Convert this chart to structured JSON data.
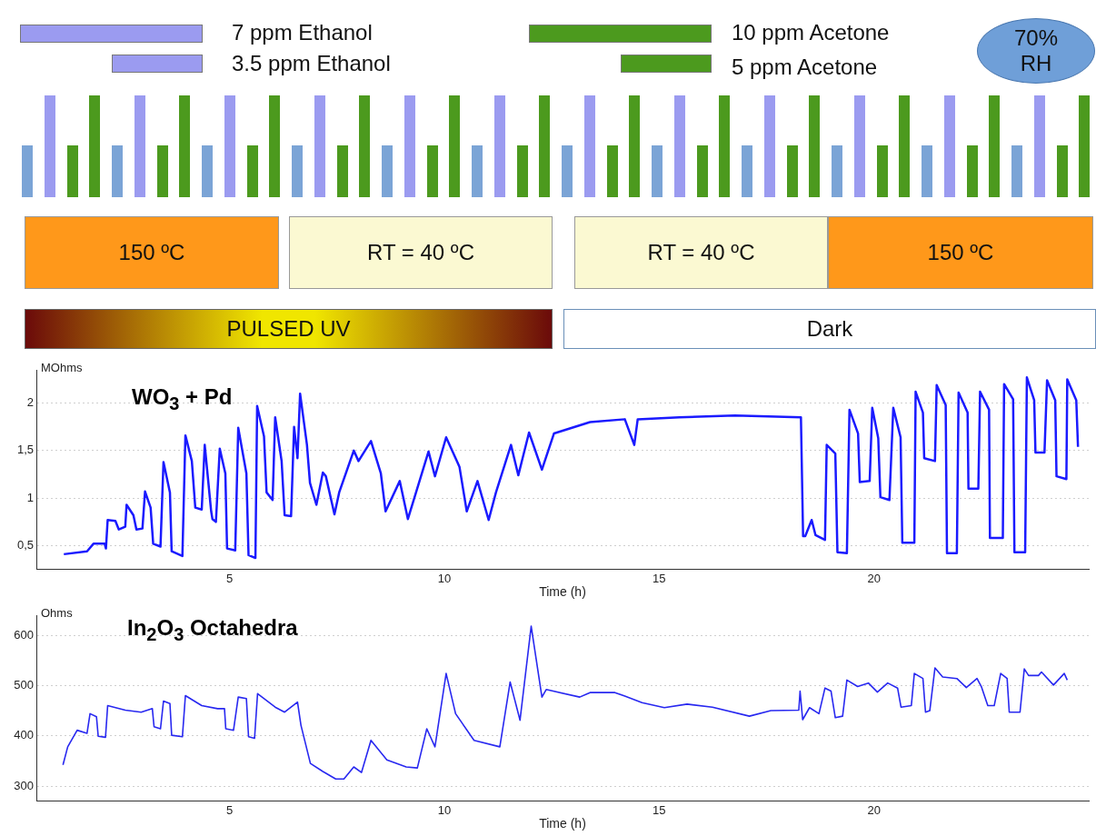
{
  "chart_data": [
    {
      "type": "other",
      "annotations": [
        "7 ppm Ethanol",
        "3.5 ppm Ethanol",
        "10 ppm Acetone",
        "5 ppm Acetone",
        "70% RH",
        "150 ºC",
        "RT = 40 ºC",
        "RT = 40 ºC",
        "150 ºC",
        "PULSED UV",
        "Dark"
      ]
    },
    {
      "type": "line",
      "title": "WO$_{3}$ + Pd",
      "xlabel": "Time (h)",
      "ylabel": "MOhms",
      "xlim": [
        0.5,
        25
      ],
      "xticks": [
        5,
        10,
        15,
        20
      ],
      "ylim": [
        0.25,
        2.35
      ],
      "yticks": [
        {
          "value": 0.5,
          "label": "0,5"
        },
        1,
        {
          "value": 1.5,
          "label": "1,5"
        },
        2
      ],
      "grid": "y",
      "marker": "none",
      "series": [
        {
          "color": "#1a1aff",
          "x": [
            1.14,
            1.68,
            1.83,
            2.09,
            2.12,
            2.16,
            2.34,
            2.42,
            2.57,
            2.6,
            2.76,
            2.83,
            2.97,
            3.03,
            3.16,
            3.22,
            3.39,
            3.46,
            3.61,
            3.65,
            3.9,
            3.97,
            4.12,
            4.2,
            4.35,
            4.42,
            4.57,
            4.6,
            4.68,
            4.77,
            4.9,
            4.94,
            5.13,
            5.2,
            5.39,
            5.44,
            5.6,
            5.64,
            5.8,
            5.86,
            6.0,
            6.06,
            6.21,
            6.28,
            6.43,
            6.5,
            6.58,
            6.64,
            6.8,
            6.87,
            7.02,
            7.17,
            7.24,
            7.44,
            7.55,
            7.89,
            8.0,
            8.29,
            8.52,
            8.63,
            8.96,
            9.15,
            9.63,
            9.78,
            10.04,
            10.35,
            10.52,
            10.77,
            11.03,
            11.2,
            11.55,
            11.72,
            11.97,
            12.27,
            12.55,
            13.39,
            14.2,
            14.42,
            14.5,
            15.47,
            16.76,
            18.3,
            18.35,
            18.4,
            18.55,
            18.64,
            18.86,
            18.9,
            19.1,
            19.15,
            19.37,
            19.43,
            19.63,
            19.67,
            19.9,
            19.96,
            20.1,
            20.15,
            20.36,
            20.45,
            20.62,
            20.66,
            20.94,
            20.97,
            21.14,
            21.17,
            21.42,
            21.46,
            21.67,
            21.7,
            21.93,
            21.97,
            22.18,
            22.2,
            22.43,
            22.47,
            22.68,
            22.7,
            23.0,
            23.03,
            23.24,
            23.27,
            23.52,
            23.56,
            23.73,
            23.76,
            23.97,
            24.03,
            24.22,
            24.25,
            24.48,
            24.5,
            24.71,
            24.75
          ],
          "values": [
            0.41,
            0.44,
            0.52,
            0.52,
            0.47,
            0.77,
            0.76,
            0.67,
            0.7,
            0.93,
            0.82,
            0.67,
            0.68,
            1.07,
            0.9,
            0.52,
            0.49,
            1.38,
            1.06,
            0.44,
            0.39,
            1.66,
            1.39,
            0.9,
            0.88,
            1.56,
            0.86,
            0.78,
            0.75,
            1.52,
            1.26,
            0.47,
            0.45,
            1.74,
            1.26,
            0.4,
            0.37,
            1.97,
            1.65,
            1.06,
            0.98,
            1.85,
            1.39,
            0.82,
            0.81,
            1.75,
            1.42,
            2.1,
            1.56,
            1.16,
            0.93,
            1.27,
            1.23,
            0.83,
            1.06,
            1.5,
            1.39,
            1.6,
            1.26,
            0.86,
            1.18,
            0.78,
            1.49,
            1.23,
            1.64,
            1.33,
            0.86,
            1.18,
            0.77,
            1.06,
            1.56,
            1.24,
            1.69,
            1.3,
            1.68,
            1.8,
            1.83,
            1.56,
            1.83,
            1.85,
            1.87,
            1.85,
            0.6,
            0.6,
            0.77,
            0.61,
            0.56,
            1.56,
            1.47,
            0.43,
            0.42,
            1.93,
            1.68,
            1.17,
            1.18,
            1.95,
            1.63,
            1.01,
            0.98,
            1.95,
            1.64,
            0.53,
            0.53,
            2.12,
            1.9,
            1.42,
            1.39,
            2.19,
            1.98,
            0.42,
            0.42,
            2.11,
            1.9,
            1.1,
            1.1,
            2.12,
            1.93,
            0.58,
            0.58,
            2.2,
            2.04,
            0.43,
            0.43,
            2.27,
            2.03,
            1.48,
            1.48,
            2.24,
            2.03,
            1.23,
            1.2,
            2.25,
            2.03,
            1.54
          ]
        }
      ]
    },
    {
      "type": "line",
      "title": "In$_{2}$O$_{3}$ Octahedra",
      "xlabel": "Time (h)",
      "ylabel": "Ohms",
      "xlim": [
        0.5,
        25
      ],
      "xticks": [
        5,
        10,
        15,
        20
      ],
      "ylim": [
        270,
        640
      ],
      "yticks": [
        300,
        400,
        500,
        600
      ],
      "grid": "y",
      "marker": "none",
      "series": [
        {
          "color": "#2828f0",
          "x": [
            1.12,
            1.23,
            1.45,
            1.68,
            1.75,
            1.9,
            1.94,
            2.11,
            2.16,
            2.57,
            2.94,
            3.2,
            3.24,
            3.39,
            3.46,
            3.61,
            3.65,
            3.9,
            3.97,
            4.35,
            4.72,
            4.88,
            4.91,
            5.09,
            5.2,
            5.39,
            5.44,
            5.58,
            5.65,
            6.06,
            6.28,
            6.58,
            6.66,
            6.88,
            7.17,
            7.47,
            7.66,
            7.89,
            8.07,
            8.29,
            8.66,
            9.11,
            9.37,
            9.59,
            9.78,
            10.04,
            10.26,
            10.69,
            11.29,
            11.53,
            11.76,
            12.02,
            12.27,
            12.37,
            13.15,
            13.39,
            13.97,
            14.2,
            14.6,
            15.12,
            15.65,
            16.24,
            17.1,
            17.6,
            18.25,
            18.28,
            18.34,
            18.5,
            18.72,
            18.86,
            19.0,
            19.1,
            19.27,
            19.37,
            19.62,
            19.87,
            20.08,
            20.32,
            20.55,
            20.63,
            20.87,
            20.94,
            21.14,
            21.2,
            21.3,
            21.42,
            21.6,
            21.93,
            22.15,
            22.4,
            22.5,
            22.65,
            22.8,
            22.95,
            23.1,
            23.15,
            23.4,
            23.5,
            23.6,
            23.83,
            23.9,
            24.18,
            24.43,
            24.5
          ],
          "values": [
            342,
            378,
            411,
            405,
            444,
            438,
            399,
            397,
            460,
            451,
            447,
            454,
            418,
            414,
            469,
            464,
            401,
            398,
            480,
            460,
            454,
            454,
            414,
            411,
            477,
            474,
            398,
            395,
            484,
            457,
            447,
            467,
            421,
            345,
            329,
            314,
            314,
            338,
            327,
            391,
            352,
            338,
            336,
            414,
            378,
            524,
            444,
            391,
            378,
            507,
            431,
            618,
            477,
            492,
            477,
            486,
            486,
            479,
            466,
            456,
            463,
            457,
            439,
            450,
            451,
            489,
            432,
            456,
            444,
            495,
            489,
            436,
            439,
            511,
            498,
            505,
            487,
            505,
            495,
            457,
            460,
            524,
            514,
            447,
            450,
            535,
            517,
            514,
            496,
            514,
            498,
            460,
            460,
            524,
            514,
            447,
            447,
            533,
            520,
            520,
            527,
            501,
            524,
            511
          ]
        }
      ]
    }
  ]
}
